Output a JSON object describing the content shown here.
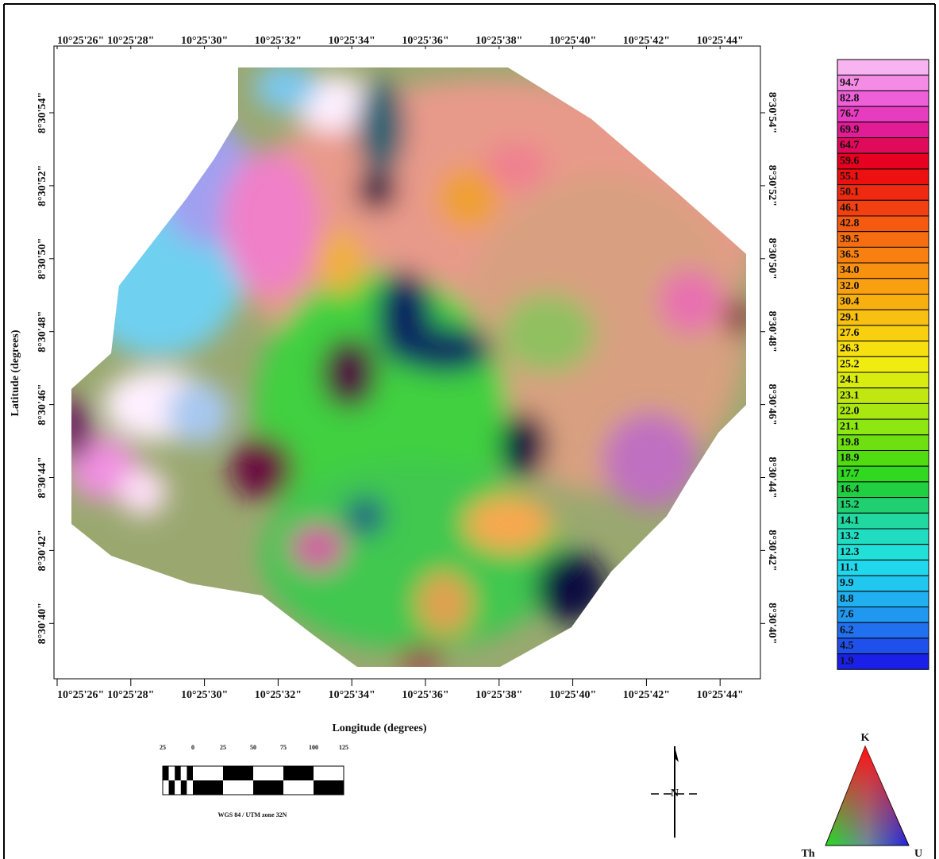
{
  "map": {
    "longitude_labels": [
      "10°25'26\"",
      "10°25'28\"",
      "10°25'30\"",
      "10°25'32\"",
      "10°25'34\"",
      "10°25'36\"",
      "10°25'38\"",
      "10°25'40\"",
      "10°25'42\"",
      "10°25'44\""
    ],
    "latitude_labels": [
      "8°30'54\"",
      "8°30'52\"",
      "8°30'50\"",
      "8°30'48\"",
      "8°30'46\"",
      "8°30'44\"",
      "8°30'42\"",
      "8°30'40\""
    ],
    "x_axis_title": "Longitude (degrees)",
    "y_axis_title": "Latitude (degrees)"
  },
  "legend": {
    "labels": [
      "94.7",
      "82.8",
      "76.7",
      "69.9",
      "64.7",
      "59.6",
      "55.1",
      "50.1",
      "46.1",
      "42.8",
      "39.5",
      "36.5",
      "34.0",
      "32.0",
      "30.4",
      "29.1",
      "27.6",
      "26.3",
      "25.2",
      "24.1",
      "23.1",
      "22.0",
      "21.1",
      "19.8",
      "18.9",
      "17.7",
      "16.4",
      "15.2",
      "14.1",
      "13.2",
      "12.3",
      "11.1",
      "9.9",
      "8.8",
      "7.6",
      "6.2",
      "4.5",
      "1.9"
    ],
    "colors": [
      "#f8b4f0",
      "#f48ce6",
      "#ee5fd8",
      "#e83cc0",
      "#e21c94",
      "#e00a5a",
      "#e80020",
      "#ec1010",
      "#f02a10",
      "#f34010",
      "#f55a10",
      "#f66e10",
      "#f78010",
      "#f89010",
      "#f8a010",
      "#f8b010",
      "#f8c010",
      "#f8d010",
      "#f8e010",
      "#f0ec10",
      "#d8ec10",
      "#c0e810",
      "#a8e810",
      "#8ce810",
      "#6ee010",
      "#50dc10",
      "#30d820",
      "#20d040",
      "#20d070",
      "#20d8a0",
      "#20dcc0",
      "#20e0d8",
      "#20d8ec",
      "#20c8f0",
      "#20b0f0",
      "#2098f0",
      "#2070f0",
      "#2050ec",
      "#1a20e8"
    ]
  },
  "scale_bar": {
    "labels": [
      "25",
      "0",
      "25",
      "50",
      "75",
      "100",
      "125"
    ],
    "projection": "WGS 84 / UTM zone 32N"
  },
  "north_arrow": "N",
  "ternary": {
    "top": "K",
    "left": "Th",
    "right": "U"
  }
}
